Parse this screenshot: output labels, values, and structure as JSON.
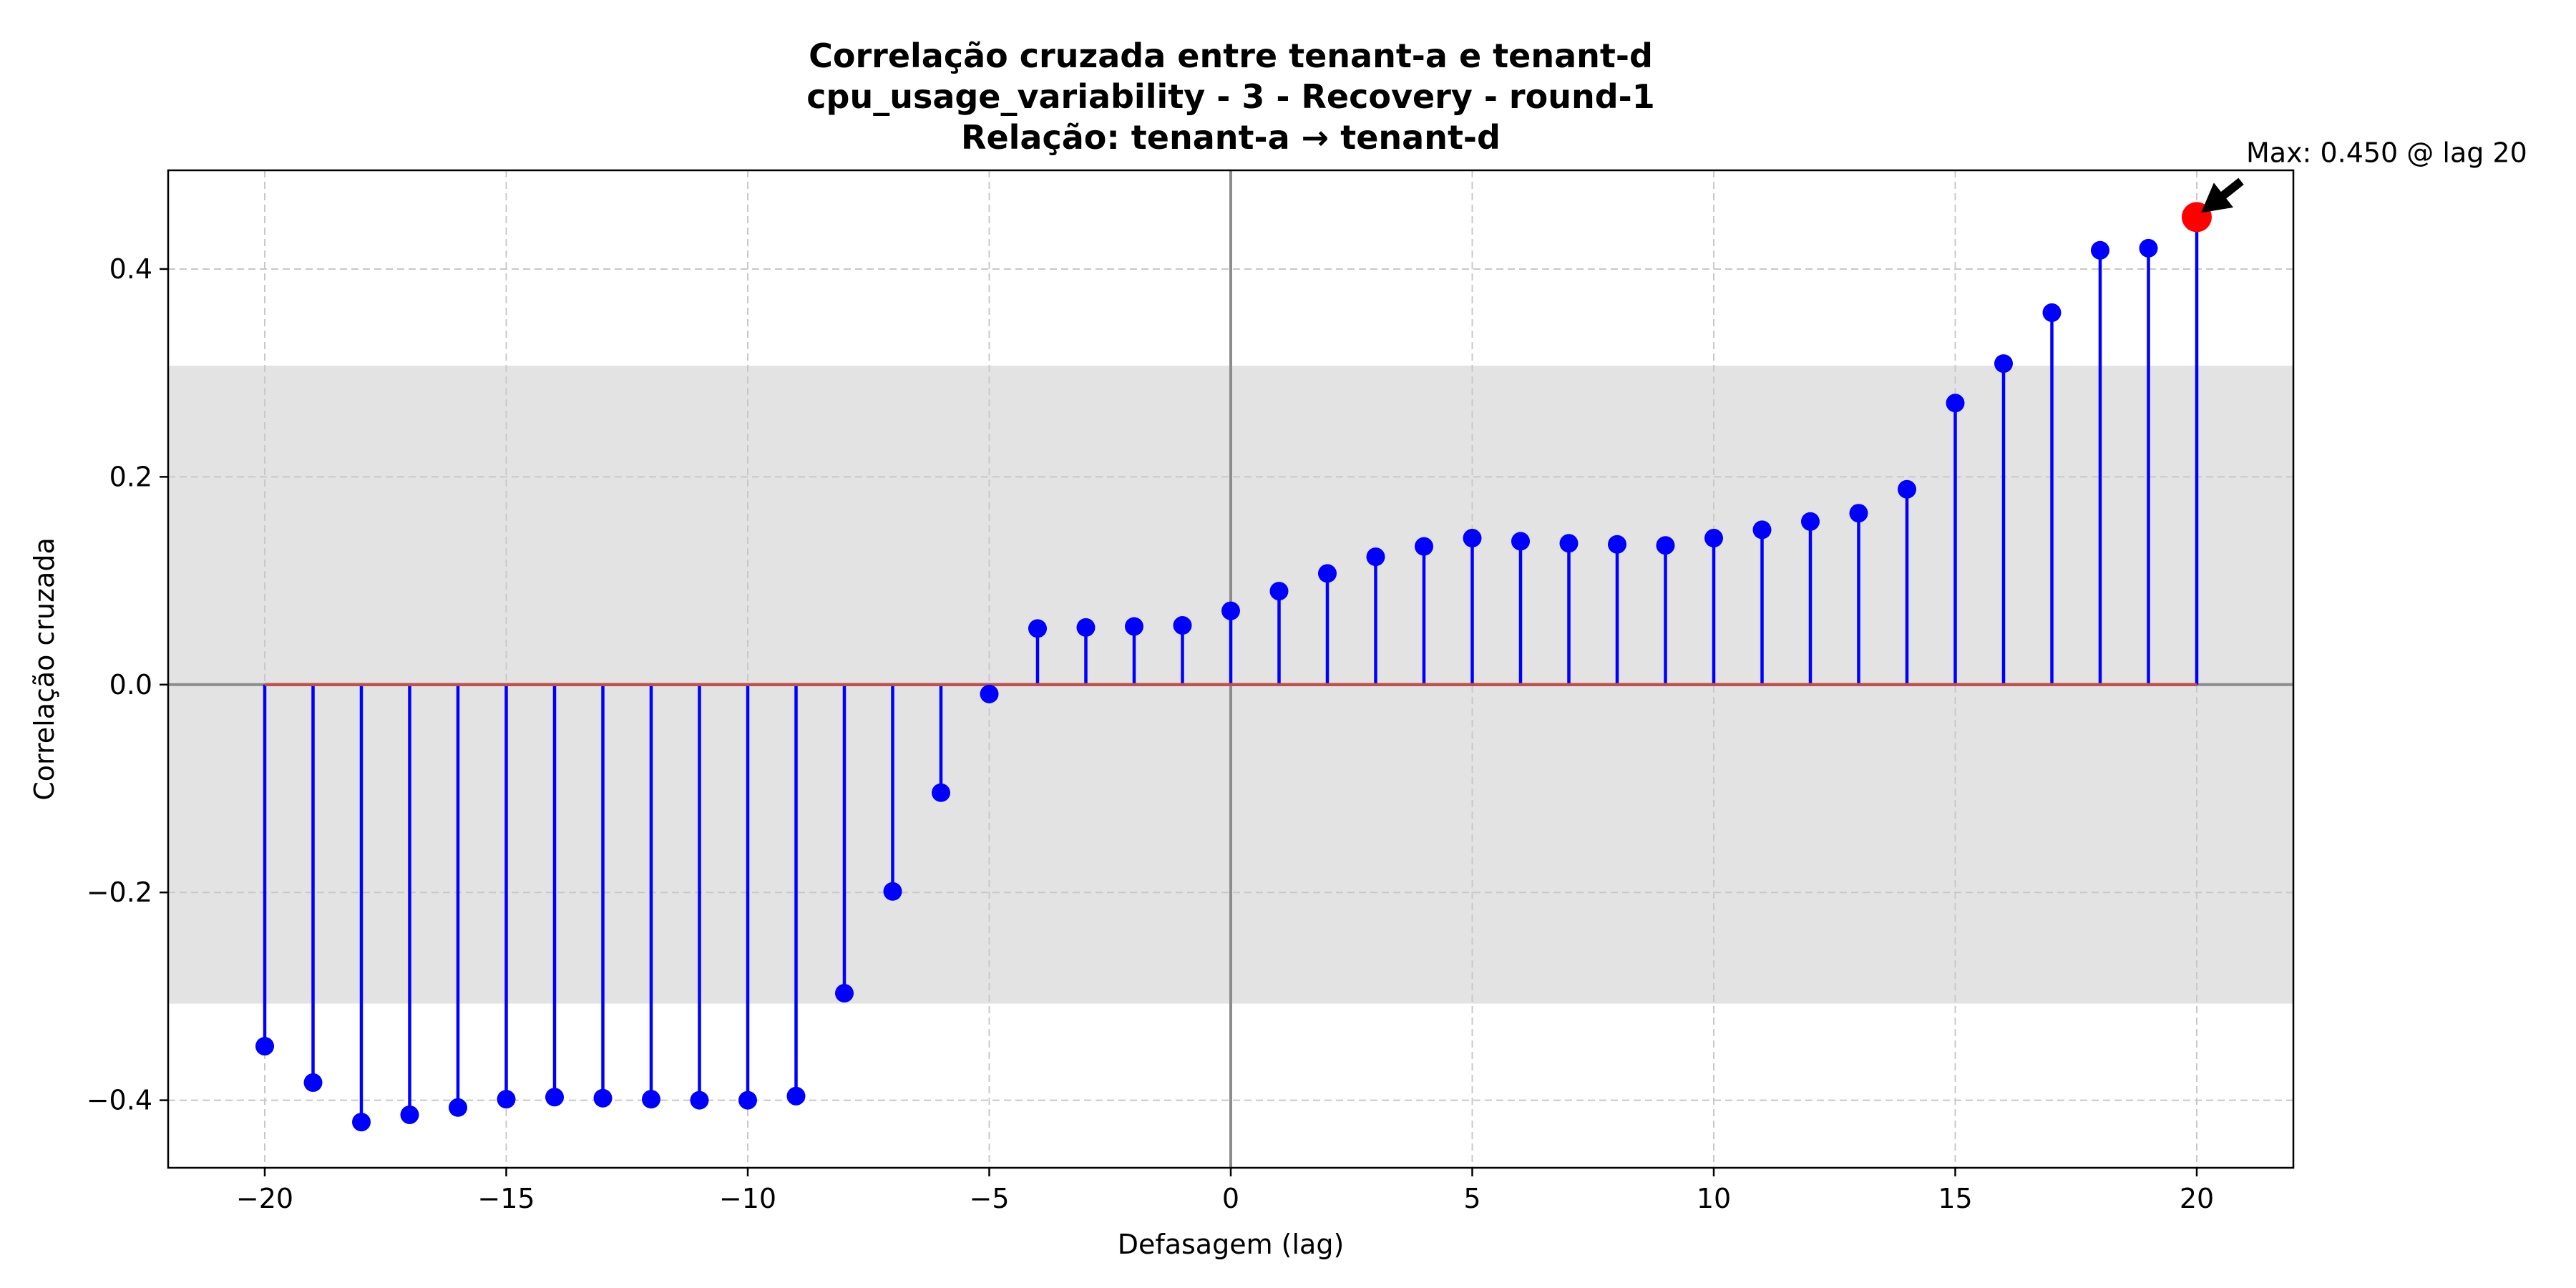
{
  "chart_data": {
    "type": "stem",
    "title_lines": [
      "Correlação cruzada entre tenant-a e tenant-d",
      "cpu_usage_variability - 3 - Recovery - round-1",
      "Relação: tenant-a → tenant-d"
    ],
    "xlabel": "Defasagem (lag)",
    "ylabel": "Correlação cruzada",
    "xlim": [
      -22,
      22
    ],
    "ylim": [
      -0.465,
      0.495
    ],
    "xticks": [
      -20,
      -15,
      -10,
      -5,
      0,
      5,
      10,
      15,
      20
    ],
    "yticks": [
      -0.4,
      -0.2,
      0.0,
      0.2,
      0.4
    ],
    "xtick_labels": [
      "−20",
      "−15",
      "−10",
      "−5",
      "0",
      "5",
      "10",
      "15",
      "20"
    ],
    "ytick_labels": [
      "−0.4",
      "−0.2",
      "0.0",
      "0.2",
      "0.4"
    ],
    "grid": true,
    "confidence_band": [
      -0.307,
      0.307
    ],
    "series": [
      {
        "x": [
          -20,
          -19,
          -18,
          -17,
          -16,
          -15,
          -14,
          -13,
          -12,
          -11,
          -10,
          -9,
          -8,
          -7,
          -6,
          -5,
          -4,
          -3,
          -2,
          -1,
          0,
          1,
          2,
          3,
          4,
          5,
          6,
          7,
          8,
          9,
          10,
          11,
          12,
          13,
          14,
          15,
          16,
          17,
          18,
          19,
          20
        ],
        "y": [
          -0.348,
          -0.383,
          -0.421,
          -0.414,
          -0.407,
          -0.399,
          -0.397,
          -0.398,
          -0.399,
          -0.4,
          -0.4,
          -0.396,
          -0.297,
          -0.199,
          -0.104,
          -0.009,
          0.054,
          0.055,
          0.056,
          0.057,
          0.071,
          0.09,
          0.107,
          0.123,
          0.133,
          0.141,
          0.138,
          0.136,
          0.135,
          0.134,
          0.141,
          0.149,
          0.157,
          0.165,
          0.188,
          0.271,
          0.309,
          0.358,
          0.418,
          0.42,
          0.45
        ]
      }
    ],
    "max_point": {
      "x": 20,
      "y": 0.45
    },
    "annotation": "Max: 0.450 @ lag 20",
    "colors": {
      "stem": "#0000ff",
      "marker": "#0000ff",
      "baseline": "#c0504d",
      "max_marker": "#ff0000",
      "band": "#e3e3e3",
      "grid": "#c8c8c8",
      "zero_lines": "#8c8c8c"
    }
  }
}
